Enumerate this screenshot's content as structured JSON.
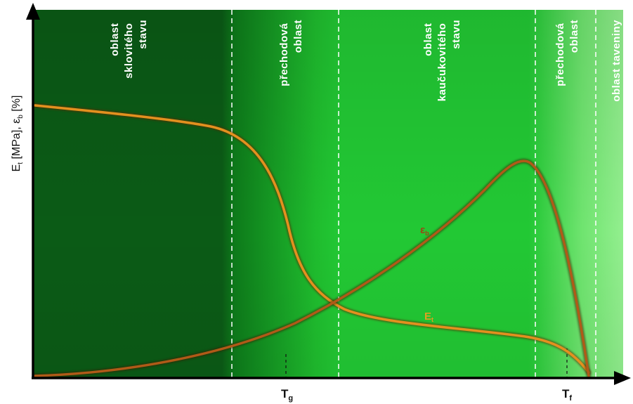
{
  "axes": {
    "y_label": "E",
    "y_label_sub1": "t",
    "y_label_mid": " [MPa], ε",
    "y_label_sub2": "b",
    "y_label_end": " [%]",
    "x_ticks": [
      {
        "main": "T",
        "sub": "g"
      },
      {
        "main": "T",
        "sub": "f"
      }
    ]
  },
  "zones": [
    {
      "lines": [
        "oblast",
        "sklovitého",
        "stavu"
      ],
      "color": "#ffffff"
    },
    {
      "lines": [
        "přechodová",
        "oblast"
      ],
      "color": "#ffffff"
    },
    {
      "lines": [
        "oblast",
        "kaučukovitého",
        "stavu"
      ],
      "color": "#ffffff"
    },
    {
      "lines": [
        "přechodová",
        "oblast"
      ],
      "color": "#ffffff"
    },
    {
      "lines": [
        "oblast taveniny"
      ],
      "color": "#ffffff"
    }
  ],
  "curves": {
    "modulus": {
      "main": "E",
      "sub": "t",
      "color": "#e08a1e"
    },
    "elongation": {
      "main": "ε",
      "sub": "b",
      "color": "#a0521a"
    }
  },
  "colors": {
    "glassy": "#0a5a14",
    "rubbery": "#1fc832",
    "melt": "#8af08a",
    "divider": "#ffffff",
    "axis": "#000000"
  }
}
